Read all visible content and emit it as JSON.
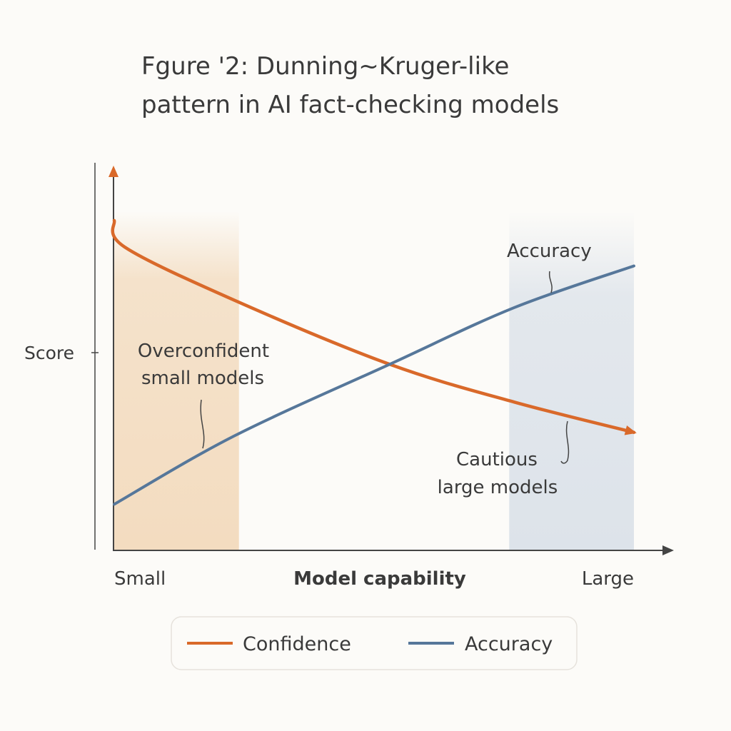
{
  "chart_data": {
    "type": "line",
    "title_lines": [
      "Fgure '2: Dunning~Kruger-like",
      "pattern in AI fact-checking models"
    ],
    "xlabel": "Model capability",
    "ylabel": "Score",
    "x_tick_labels": {
      "left": "Small",
      "right": "Large"
    },
    "xlim": [
      0,
      1
    ],
    "ylim": [
      0,
      1
    ],
    "grid": false,
    "legend_placement": "bottom",
    "series": [
      {
        "name": "Confidence",
        "color": "#d9692a",
        "x": [
          0,
          0.02,
          0.23,
          0.53,
          0.77,
          1.0
        ],
        "y": [
          0.87,
          0.8,
          0.66,
          0.49,
          0.39,
          0.31
        ]
      },
      {
        "name": "Accuracy",
        "color": "#56779a",
        "x": [
          0,
          0.23,
          0.53,
          0.77,
          1.0
        ],
        "y": [
          0.12,
          0.3,
          0.49,
          0.64,
          0.75
        ]
      }
    ],
    "shaded_regions": [
      {
        "x": [
          0,
          0.24
        ],
        "color": "#f3dcc0"
      },
      {
        "x": [
          0.76,
          1.0
        ],
        "color": "#dde3ea"
      }
    ],
    "annotations": {
      "accuracy_label": "Accuracy",
      "overconfident": [
        "Overconfident",
        "small models"
      ],
      "cautious": [
        "Cautious",
        "large models"
      ]
    },
    "legend": [
      "Confidence",
      "Accuracy"
    ]
  }
}
